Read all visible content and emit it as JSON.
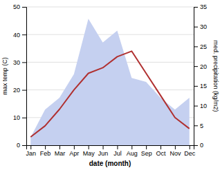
{
  "chart_data": {
    "type": "line",
    "categories": [
      "Jan",
      "Feb",
      "Mar",
      "Apr",
      "May",
      "Jun",
      "Jul",
      "Aug",
      "Sep",
      "Oct",
      "Nov",
      "Dec"
    ],
    "xlabel": "date (month)",
    "ylabel": "max temp (C)",
    "y2label": "med. precipitation (kg/m2)",
    "ylim": [
      0,
      50
    ],
    "yticks": [
      0,
      10,
      20,
      30,
      40,
      50
    ],
    "y2lim": [
      0,
      35
    ],
    "y2ticks": [
      0,
      5,
      10,
      15,
      20,
      25,
      30,
      35
    ],
    "grid": true,
    "series": [
      {
        "type": "area",
        "axis": "y2",
        "color": "#c5d0f0",
        "values": [
          2,
          9,
          12,
          18,
          32,
          26,
          29,
          17,
          16,
          12,
          9,
          12
        ]
      },
      {
        "type": "line",
        "color": "#b03030",
        "values": [
          3,
          7,
          13,
          20,
          26,
          28,
          32,
          34,
          26,
          18,
          10,
          6
        ]
      }
    ]
  }
}
